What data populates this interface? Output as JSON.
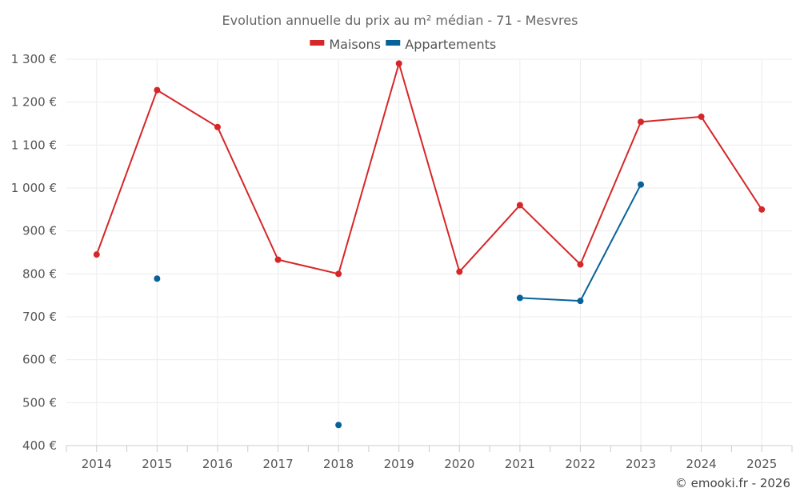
{
  "chart_data": {
    "type": "line",
    "title": "Evolution annuelle du prix au m² médian - 71 - Mesvres",
    "xlabel": "",
    "ylabel": "",
    "categories": [
      "2014",
      "2015",
      "2016",
      "2017",
      "2018",
      "2019",
      "2020",
      "2021",
      "2022",
      "2023",
      "2024",
      "2025"
    ],
    "ylim": [
      400,
      1300
    ],
    "yticks": [
      400,
      500,
      600,
      700,
      800,
      900,
      1000,
      1100,
      1200,
      1300
    ],
    "ytick_labels": [
      "400 €",
      "500 €",
      "600 €",
      "700 €",
      "800 €",
      "900 €",
      "1 000 €",
      "1 100 €",
      "1 200 €",
      "1 300 €"
    ],
    "grid": true,
    "legend_position": "top-center",
    "series": [
      {
        "name": "Maisons",
        "color": "#d62728",
        "values": [
          845,
          1228,
          1142,
          833,
          800,
          1290,
          805,
          960,
          822,
          1154,
          1166,
          950
        ]
      },
      {
        "name": "Appartements",
        "color": "#08629a",
        "values": [
          null,
          789,
          null,
          null,
          448,
          null,
          null,
          744,
          737,
          1008,
          null,
          null
        ]
      }
    ]
  },
  "credit": "© emooki.fr - 2026"
}
